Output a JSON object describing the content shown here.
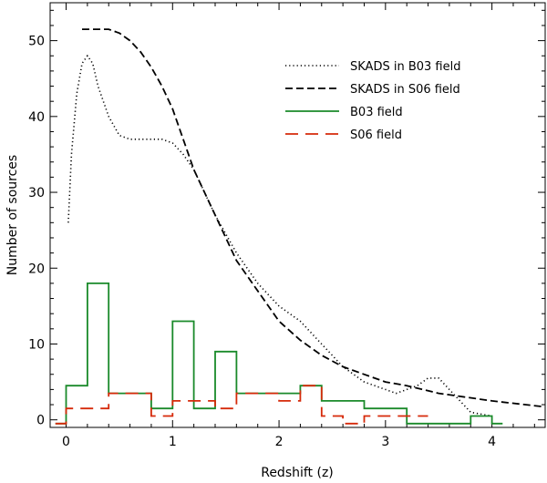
{
  "chart_data": {
    "type": "line",
    "title": "",
    "xlabel": "Redshift (z)",
    "ylabel": "Number of sources",
    "xlim": [
      -0.15,
      4.5
    ],
    "ylim": [
      -1,
      55
    ],
    "xticks": [
      0,
      1,
      2,
      3,
      4
    ],
    "yticks": [
      0,
      10,
      20,
      30,
      40,
      50
    ],
    "xtick_labels": [
      "0",
      "1",
      "2",
      "3",
      "4"
    ],
    "ytick_labels": [
      "0",
      "10",
      "20",
      "30",
      "40",
      "50"
    ],
    "legend_position": "top-right",
    "series": [
      {
        "name": "SKADS in B03 field",
        "style": "dotted",
        "color": "#000000",
        "kind": "line",
        "x": [
          0.02,
          0.05,
          0.1,
          0.15,
          0.2,
          0.25,
          0.3,
          0.4,
          0.5,
          0.6,
          0.7,
          0.8,
          0.9,
          1.0,
          1.1,
          1.2,
          1.4,
          1.6,
          1.8,
          2.0,
          2.2,
          2.4,
          2.6,
          2.8,
          3.0,
          3.1,
          3.2,
          3.3,
          3.4,
          3.5,
          3.6,
          3.7,
          3.8,
          4.0
        ],
        "y": [
          26,
          35,
          43,
          47,
          48,
          47,
          44,
          40,
          37.5,
          37,
          37,
          37,
          37,
          36.5,
          35,
          33,
          27,
          22,
          18,
          15,
          13,
          10,
          7,
          5,
          4,
          3.5,
          4,
          4.5,
          5.5,
          5.5,
          4,
          2.5,
          1,
          0.5
        ]
      },
      {
        "name": "SKADS in S06 field",
        "style": "dashed",
        "color": "#000000",
        "kind": "line",
        "x": [
          0.15,
          0.2,
          0.3,
          0.4,
          0.5,
          0.6,
          0.7,
          0.8,
          0.9,
          1.0,
          1.2,
          1.4,
          1.6,
          1.8,
          2.0,
          2.2,
          2.4,
          2.6,
          2.8,
          3.0,
          3.2,
          3.5,
          4.0,
          4.5
        ],
        "y": [
          51.5,
          51.5,
          51.5,
          51.5,
          51,
          50,
          48.5,
          46.5,
          44,
          41,
          33,
          27,
          21,
          17,
          13,
          10.5,
          8.5,
          7,
          6,
          5,
          4.5,
          3.5,
          2.5,
          1.7
        ]
      },
      {
        "name": "B03 field",
        "style": "solid",
        "color": "#1a8a2a",
        "kind": "step",
        "edges": [
          -0.1,
          0.0,
          0.2,
          0.4,
          0.8,
          1.0,
          1.2,
          1.4,
          1.6,
          2.2,
          2.4,
          2.8,
          3.2,
          3.4,
          3.8,
          4.0,
          4.1
        ],
        "values": [
          -0.5,
          4.5,
          18,
          3.5,
          1.5,
          13,
          1.5,
          9,
          3.5,
          4.5,
          2.5,
          1.5,
          -0.5,
          -0.5,
          0.5,
          -0.5
        ]
      },
      {
        "name": "S06 field",
        "style": "longdash",
        "color": "#d62a0a",
        "kind": "step",
        "edges": [
          -0.1,
          0.0,
          0.4,
          0.6,
          0.8,
          1.0,
          1.2,
          1.4,
          1.6,
          2.0,
          2.2,
          2.4,
          2.6,
          2.8,
          3.0,
          3.2,
          3.4
        ],
        "values": [
          -0.5,
          1.5,
          3.5,
          3.5,
          0.5,
          2.5,
          2.5,
          1.5,
          3.5,
          2.5,
          4.5,
          0.5,
          -0.5,
          0.5,
          0.5,
          0.5
        ]
      }
    ]
  }
}
